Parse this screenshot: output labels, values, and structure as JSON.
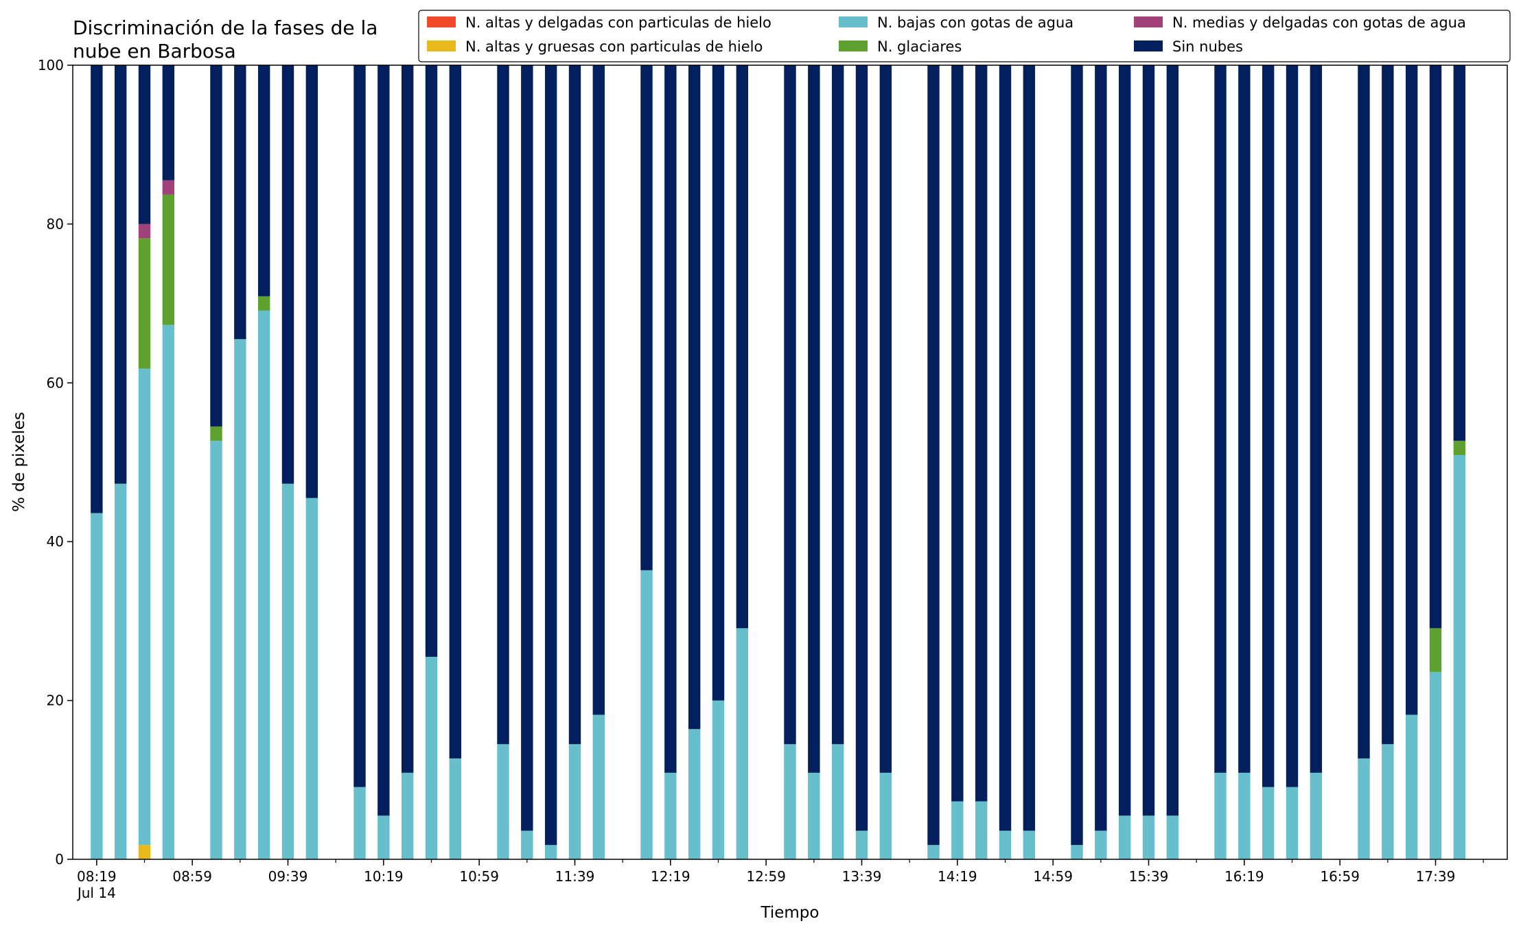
{
  "chart_data": {
    "type": "bar",
    "stacked": true,
    "title_lines": [
      "Discriminación de la fases de la",
      "nube en Barbosa"
    ],
    "xlabel": "Tiempo",
    "ylabel": "% de pixeles",
    "ylim": [
      0,
      100
    ],
    "yticks": [
      0,
      20,
      40,
      60,
      80,
      100
    ],
    "xlim": [
      "08:09",
      "18:09"
    ],
    "xtick_times": [
      "08:19",
      "08:59",
      "09:39",
      "10:19",
      "10:59",
      "11:39",
      "12:19",
      "12:59",
      "13:39",
      "14:19",
      "14:59",
      "15:39",
      "16:19",
      "16:59",
      "17:39"
    ],
    "xtick_date_label": "Jul 14",
    "minor_tick_step_minutes": 20,
    "bar_width_minutes": 5,
    "legend_position": "top-right",
    "legend_columns": 3,
    "x": [
      "08:19",
      "08:29",
      "08:39",
      "08:49",
      "09:09",
      "09:19",
      "09:29",
      "09:39",
      "09:49",
      "10:09",
      "10:19",
      "10:29",
      "10:39",
      "10:49",
      "11:09",
      "11:19",
      "11:29",
      "11:39",
      "11:49",
      "12:09",
      "12:19",
      "12:29",
      "12:39",
      "12:49",
      "13:09",
      "13:19",
      "13:29",
      "13:39",
      "13:49",
      "14:09",
      "14:19",
      "14:29",
      "14:39",
      "14:49",
      "15:09",
      "15:19",
      "15:29",
      "15:39",
      "15:49",
      "16:09",
      "16:19",
      "16:29",
      "16:39",
      "16:49",
      "17:09",
      "17:19",
      "17:29",
      "17:39",
      "17:49"
    ],
    "series": [
      {
        "name": "N. altas y delgadas con particulas de hielo",
        "color": "#ef4a2c",
        "values": [
          0,
          0,
          0,
          0,
          0,
          0,
          0,
          0,
          0,
          0,
          0,
          0,
          0,
          0,
          0,
          0,
          0,
          0,
          0,
          0,
          0,
          0,
          0,
          0,
          0,
          0,
          0,
          0,
          0,
          0,
          0,
          0,
          0,
          0,
          0,
          0,
          0,
          0,
          0,
          0,
          0,
          0,
          0,
          0,
          0,
          0,
          0,
          0,
          0
        ]
      },
      {
        "name": "N. altas y gruesas con particulas de hielo",
        "color": "#e8b81c",
        "values": [
          0,
          0,
          1.8,
          0,
          0,
          0,
          0,
          0,
          0,
          0,
          0,
          0,
          0,
          0,
          0,
          0,
          0,
          0,
          0,
          0,
          0,
          0,
          0,
          0,
          0,
          0,
          0,
          0,
          0,
          0,
          0,
          0,
          0,
          0,
          0,
          0,
          0,
          0,
          0,
          0,
          0,
          0,
          0,
          0,
          0,
          0,
          0,
          0,
          0
        ]
      },
      {
        "name": "N. bajas con gotas de agua",
        "color": "#66bfca",
        "values": [
          43.6,
          47.3,
          60.0,
          67.3,
          52.7,
          65.5,
          69.1,
          47.3,
          45.5,
          9.1,
          5.5,
          10.9,
          25.5,
          12.7,
          14.5,
          3.6,
          1.8,
          14.5,
          18.2,
          36.4,
          10.9,
          16.4,
          20.0,
          29.1,
          14.5,
          10.9,
          14.5,
          3.6,
          10.9,
          1.8,
          7.3,
          7.3,
          3.6,
          3.6,
          1.8,
          3.6,
          5.5,
          5.5,
          5.5,
          10.9,
          10.9,
          9.1,
          9.1,
          10.9,
          12.7,
          14.5,
          18.2,
          23.6,
          50.9
        ]
      },
      {
        "name": "N. glaciares",
        "color": "#5ea12f",
        "values": [
          0,
          0,
          16.4,
          16.4,
          1.8,
          0,
          1.8,
          0,
          0,
          0,
          0,
          0,
          0,
          0,
          0,
          0,
          0,
          0,
          0,
          0,
          0,
          0,
          0,
          0,
          0,
          0,
          0,
          0,
          0,
          0,
          0,
          0,
          0,
          0,
          0,
          0,
          0,
          0,
          0,
          0,
          0,
          0,
          0,
          0,
          0,
          0,
          0,
          5.5,
          1.8
        ]
      },
      {
        "name": "N. medias y delgadas con gotas de agua",
        "color": "#a1427b",
        "values": [
          0,
          0,
          1.8,
          1.8,
          0,
          0,
          0,
          0,
          0,
          0,
          0,
          0,
          0,
          0,
          0,
          0,
          0,
          0,
          0,
          0,
          0,
          0,
          0,
          0,
          0,
          0,
          0,
          0,
          0,
          0,
          0,
          0,
          0,
          0,
          0,
          0,
          0,
          0,
          0,
          0,
          0,
          0,
          0,
          0,
          0,
          0,
          0,
          0,
          0
        ]
      },
      {
        "name": "Sin nubes",
        "color": "#031f5e",
        "values": [
          56.4,
          52.7,
          20.0,
          14.5,
          45.5,
          34.5,
          29.1,
          52.7,
          54.5,
          90.9,
          94.5,
          89.1,
          74.5,
          87.3,
          85.5,
          96.4,
          98.2,
          85.5,
          81.8,
          63.6,
          89.1,
          83.6,
          80.0,
          70.9,
          85.5,
          89.1,
          85.5,
          96.4,
          89.1,
          98.2,
          92.7,
          92.7,
          96.4,
          96.4,
          98.2,
          96.4,
          94.5,
          94.5,
          94.5,
          89.1,
          89.1,
          90.9,
          90.9,
          89.1,
          87.3,
          85.5,
          81.8,
          70.9,
          47.3
        ]
      }
    ]
  }
}
